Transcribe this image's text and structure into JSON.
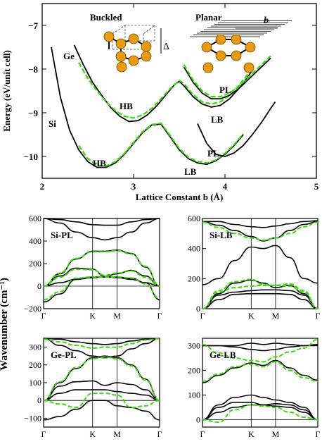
{
  "colors": {
    "black": "#000000",
    "green": "#33dd00",
    "atom": "#e89a10",
    "atom_edge": "#7a4a00"
  },
  "chart_data": [
    {
      "id": "energy",
      "type": "line",
      "ylabel": "Energy (eV/unit cell)",
      "xlabel": "Lattice Constant b (Å)",
      "xlim": [
        2,
        5
      ],
      "ylim": [
        -10.5,
        -6.5
      ],
      "x_ticks": [
        "2",
        "3",
        "4",
        "5"
      ],
      "y_ticks": [
        "-7",
        "-8",
        "-9",
        "-10"
      ],
      "labels": {
        "ge": "Ge",
        "si": "Si",
        "hb_ge": "HB",
        "hb_si": "HB",
        "pl_ge": "PL",
        "lb_ge": "LB",
        "pl_si": "PL",
        "lb_si": "LB"
      },
      "inset": {
        "buckled": "Buckled",
        "planar": "Planar",
        "delta": "Δ",
        "b": "b"
      },
      "series": [
        {
          "material": "Ge",
          "phase": "HB-LB",
          "style": "solid",
          "x": [
            2.35,
            2.45,
            2.55,
            2.65,
            2.75,
            2.85,
            2.95,
            3.05,
            3.15,
            3.25,
            3.35,
            3.45,
            3.5,
            3.55,
            3.65,
            3.75,
            3.85,
            3.95,
            4.05,
            4.15,
            4.25,
            4.3
          ],
          "y": [
            -7.45,
            -7.9,
            -8.3,
            -8.6,
            -8.88,
            -9.08,
            -9.2,
            -9.18,
            -9.05,
            -8.85,
            -8.6,
            -8.35,
            -8.28,
            -8.38,
            -8.63,
            -8.8,
            -8.87,
            -8.83,
            -8.68,
            -8.45,
            -8.18,
            -8.02
          ]
        },
        {
          "material": "Ge",
          "phase": "HB-LB",
          "style": "dashed",
          "x": [
            2.4,
            2.5,
            2.6,
            2.7,
            2.8,
            2.9,
            3.0,
            3.1,
            3.2,
            3.3,
            3.4,
            3.5,
            3.55,
            3.65,
            3.75,
            3.85,
            3.95,
            4.05,
            4.15,
            4.25,
            4.3
          ],
          "y": [
            -7.85,
            -8.22,
            -8.5,
            -8.75,
            -8.95,
            -9.08,
            -9.12,
            -9.05,
            -8.9,
            -8.68,
            -8.45,
            -8.26,
            -8.33,
            -8.58,
            -8.75,
            -8.8,
            -8.75,
            -8.6,
            -8.38,
            -8.12,
            -7.98
          ]
        },
        {
          "material": "Ge",
          "phase": "PL",
          "style": "solid",
          "x": [
            3.55,
            3.65,
            3.75,
            3.85,
            3.95,
            4.05,
            4.15,
            4.25,
            4.35,
            4.5
          ],
          "y": [
            -7.95,
            -8.3,
            -8.55,
            -8.68,
            -8.68,
            -8.6,
            -8.45,
            -8.25,
            -8.05,
            -7.75
          ]
        },
        {
          "material": "Ge",
          "phase": "PL",
          "style": "dashed",
          "x": [
            3.55,
            3.65,
            3.75,
            3.85,
            3.95,
            4.05,
            4.15,
            4.25,
            4.35,
            4.5
          ],
          "y": [
            -7.9,
            -8.25,
            -8.5,
            -8.63,
            -8.63,
            -8.55,
            -8.4,
            -8.2,
            -8.0,
            -7.7
          ]
        },
        {
          "material": "Si",
          "phase": "HB-LB",
          "style": "solid",
          "x": [
            2.1,
            2.2,
            2.3,
            2.4,
            2.5,
            2.6,
            2.7,
            2.8,
            2.9,
            3.0,
            3.1,
            3.2,
            3.3,
            3.4,
            3.5,
            3.6,
            3.7,
            3.8,
            3.9,
            4.0,
            4.1,
            4.2
          ],
          "y": [
            -7.5,
            -8.65,
            -9.4,
            -9.85,
            -10.12,
            -10.25,
            -10.25,
            -10.15,
            -9.95,
            -9.7,
            -9.45,
            -9.28,
            -9.26,
            -9.55,
            -9.85,
            -10.05,
            -10.15,
            -10.18,
            -10.1,
            -9.95,
            -9.75,
            -9.5
          ]
        },
        {
          "material": "Si",
          "phase": "HB-LB",
          "style": "dashed",
          "x": [
            2.4,
            2.5,
            2.6,
            2.7,
            2.8,
            2.9,
            3.0,
            3.1,
            3.2,
            3.3,
            3.4,
            3.5,
            3.6,
            3.7,
            3.8,
            3.9,
            4.0,
            4.1,
            4.2
          ],
          "y": [
            -9.75,
            -10.05,
            -10.2,
            -10.22,
            -10.12,
            -9.93,
            -9.68,
            -9.43,
            -9.27,
            -9.24,
            -9.52,
            -9.82,
            -10.02,
            -10.12,
            -10.15,
            -10.08,
            -9.93,
            -9.73,
            -9.48
          ]
        },
        {
          "material": "Si",
          "phase": "PL",
          "style": "solid",
          "x": [
            3.7,
            3.8,
            3.9,
            4.0,
            4.1,
            4.2,
            4.3,
            4.4,
            4.5,
            4.55
          ],
          "y": [
            -9.25,
            -9.7,
            -9.95,
            -10.0,
            -9.92,
            -9.75,
            -9.5,
            -9.22,
            -8.9,
            -8.75
          ]
        }
      ]
    },
    {
      "id": "si-pl",
      "type": "line",
      "label": "Si-PL",
      "ylim": [
        -200,
        600
      ],
      "y_ticks": [
        "600",
        "400",
        "200",
        "0",
        "-200"
      ],
      "k_labels": [
        "Γ",
        "K",
        "M",
        "Γ"
      ],
      "series": [
        {
          "branch": 1,
          "style": "solid",
          "values": [
            -140,
            -70,
            60,
            80,
            80,
            80,
            70,
            30,
            -120
          ]
        },
        {
          "branch": 2,
          "style": "solid",
          "values": [
            0,
            30,
            60,
            75,
            85,
            75,
            60,
            30,
            0
          ]
        },
        {
          "branch": 3,
          "style": "solid",
          "values": [
            0,
            90,
            160,
            150,
            85,
            110,
            140,
            90,
            0
          ]
        },
        {
          "branch": 4,
          "style": "solid",
          "values": [
            0,
            110,
            240,
            310,
            310,
            320,
            290,
            170,
            0
          ]
        },
        {
          "branch": 5,
          "style": "solid",
          "values": [
            600,
            560,
            480,
            430,
            410,
            430,
            480,
            560,
            600
          ]
        },
        {
          "branch": 6,
          "style": "solid",
          "values": [
            600,
            590,
            570,
            545,
            540,
            540,
            570,
            590,
            600
          ]
        },
        {
          "branch": 1,
          "style": "dashed",
          "values": [
            -120,
            -50,
            70,
            82,
            82,
            82,
            72,
            20,
            -110
          ]
        },
        {
          "branch": 3,
          "style": "dashed",
          "values": [
            0,
            80,
            150,
            145,
            95,
            115,
            135,
            80,
            0
          ]
        },
        {
          "branch": 4,
          "style": "dashed",
          "values": [
            0,
            115,
            245,
            305,
            305,
            315,
            285,
            175,
            0
          ]
        }
      ]
    },
    {
      "id": "si-lb",
      "type": "line",
      "label": "Si-LB",
      "ylim": [
        0,
        600
      ],
      "y_ticks": [
        "600",
        "400",
        "200",
        "0"
      ],
      "k_labels": [
        "Γ",
        "K",
        "M",
        "Γ"
      ],
      "series": [
        {
          "branch": 1,
          "style": "solid",
          "values": [
            0,
            60,
            95,
            100,
            100,
            100,
            95,
            60,
            0
          ]
        },
        {
          "branch": 2,
          "style": "solid",
          "values": [
            0,
            90,
            110,
            120,
            125,
            125,
            120,
            90,
            0
          ]
        },
        {
          "branch": 3,
          "style": "solid",
          "values": [
            0,
            100,
            170,
            190,
            170,
            140,
            155,
            100,
            0
          ]
        },
        {
          "branch": 4,
          "style": "solid",
          "values": [
            160,
            200,
            320,
            410,
            400,
            420,
            340,
            200,
            170
          ]
        },
        {
          "branch": 5,
          "style": "solid",
          "values": [
            580,
            555,
            520,
            480,
            450,
            470,
            520,
            560,
            580
          ]
        },
        {
          "branch": 6,
          "style": "solid",
          "values": [
            580,
            580,
            560,
            545,
            540,
            550,
            565,
            580,
            585
          ]
        },
        {
          "branch": 2,
          "style": "dashed",
          "values": [
            0,
            110,
            140,
            150,
            155,
            155,
            150,
            110,
            0
          ]
        },
        {
          "branch": 3,
          "style": "dashed",
          "values": [
            0,
            120,
            180,
            195,
            160,
            155,
            165,
            120,
            0
          ]
        },
        {
          "branch": 5,
          "style": "dashed",
          "values": [
            575,
            540,
            500,
            470,
            455,
            470,
            500,
            545,
            575
          ]
        }
      ]
    },
    {
      "id": "ge-pl",
      "type": "line",
      "label": "Ge-PL",
      "ylim": [
        -150,
        350
      ],
      "y_ticks": [
        "300",
        "200",
        "100",
        "0",
        "-100"
      ],
      "k_labels": [
        "Γ",
        "K",
        "M",
        "Γ"
      ],
      "series": [
        {
          "branch": 1,
          "style": "solid",
          "values": [
            -110,
            -90,
            -50,
            0,
            0,
            -30,
            -40,
            -60,
            -110
          ]
        },
        {
          "branch": 2,
          "style": "solid",
          "values": [
            0,
            40,
            60,
            60,
            60,
            50,
            40,
            30,
            0
          ]
        },
        {
          "branch": 3,
          "style": "solid",
          "values": [
            0,
            80,
            105,
            110,
            85,
            100,
            90,
            60,
            0
          ]
        },
        {
          "branch": 4,
          "style": "solid",
          "values": [
            0,
            100,
            180,
            240,
            250,
            240,
            200,
            120,
            0
          ]
        },
        {
          "branch": 5,
          "style": "solid",
          "values": [
            350,
            310,
            280,
            250,
            240,
            250,
            290,
            320,
            350
          ]
        },
        {
          "branch": 6,
          "style": "solid",
          "values": [
            350,
            345,
            330,
            320,
            315,
            320,
            335,
            345,
            350
          ]
        },
        {
          "branch": 1,
          "style": "dashed",
          "values": [
            0,
            -20,
            -40,
            40,
            40,
            30,
            -40,
            -30,
            0
          ]
        },
        {
          "branch": 4,
          "style": "dashed",
          "values": [
            0,
            105,
            185,
            235,
            245,
            235,
            195,
            115,
            0
          ]
        },
        {
          "branch": 6,
          "style": "dashed",
          "values": [
            345,
            330,
            310,
            295,
            300,
            300,
            320,
            340,
            348
          ]
        }
      ]
    },
    {
      "id": "ge-lb",
      "type": "line",
      "label": "Ge-LB",
      "ylim": [
        -30,
        330
      ],
      "y_ticks": [
        "300",
        "200",
        "100",
        "0"
      ],
      "k_labels": [
        "Γ",
        "K",
        "M",
        "Γ"
      ],
      "series": [
        {
          "branch": 1,
          "style": "solid",
          "values": [
            0,
            30,
            50,
            60,
            60,
            55,
            50,
            30,
            0
          ]
        },
        {
          "branch": 2,
          "style": "solid",
          "values": [
            0,
            50,
            70,
            70,
            60,
            65,
            60,
            40,
            0
          ]
        },
        {
          "branch": 3,
          "style": "solid",
          "values": [
            0,
            60,
            90,
            100,
            90,
            80,
            70,
            50,
            0
          ]
        },
        {
          "branch": 4,
          "style": "solid",
          "values": [
            150,
            180,
            210,
            230,
            220,
            240,
            210,
            180,
            160
          ]
        },
        {
          "branch": 5,
          "style": "solid",
          "values": [
            300,
            300,
            295,
            285,
            280,
            285,
            295,
            300,
            305
          ]
        },
        {
          "branch": 6,
          "style": "solid",
          "values": [
            300,
            300,
            300,
            310,
            305,
            310,
            305,
            300,
            300
          ]
        },
        {
          "branch": 1,
          "style": "dashed",
          "values": [
            0,
            -10,
            40,
            60,
            55,
            50,
            30,
            10,
            0
          ]
        },
        {
          "branch": 4,
          "style": "dashed",
          "values": [
            155,
            185,
            215,
            225,
            215,
            235,
            200,
            170,
            155
          ]
        },
        {
          "branch": 6,
          "style": "dashed",
          "values": [
            305,
            270,
            250,
            240,
            235,
            255,
            275,
            290,
            325
          ]
        }
      ]
    }
  ],
  "phonon": {
    "ylabel": "Wavenumber (cm⁻¹)"
  }
}
